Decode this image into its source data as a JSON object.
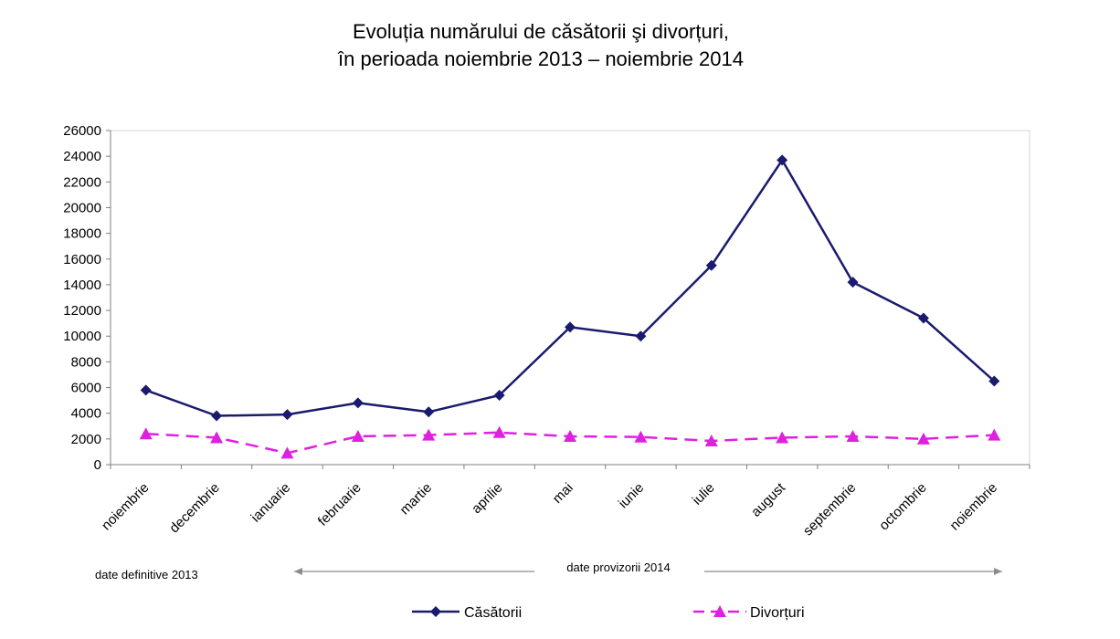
{
  "chart_data": {
    "type": "line",
    "title_lines": [
      "Evoluția numărului de căsătorii şi divorțuri,",
      "în perioada noiembrie 2013 – noiembrie 2014"
    ],
    "categories": [
      "noiembrie",
      "decembrie",
      "ianuarie",
      "februarie",
      "martie",
      "aprilie",
      "mai",
      "iunie",
      "iulie",
      "august",
      "septembrie",
      "octombrie",
      "noiembrie"
    ],
    "ylim": [
      0,
      26000
    ],
    "yticks": [
      0,
      2000,
      4000,
      6000,
      8000,
      10000,
      12000,
      14000,
      16000,
      18000,
      20000,
      22000,
      24000,
      26000
    ],
    "series": [
      {
        "name": "Căsătorii",
        "color": "#1a1a6e",
        "marker": "diamond",
        "dash": "solid",
        "values": [
          5800,
          3800,
          3900,
          4800,
          4100,
          5400,
          10700,
          10000,
          15500,
          23700,
          14200,
          11400,
          6500
        ]
      },
      {
        "name": "Divorțuri",
        "color": "#e020e0",
        "marker": "triangle",
        "dash": "dashed",
        "values": [
          2400,
          2100,
          900,
          2200,
          2300,
          2500,
          2200,
          2150,
          1850,
          2100,
          2200,
          2000,
          2300
        ]
      }
    ],
    "annotations": {
      "definitive": "date definitive 2013",
      "provisional": "date provizorii 2014"
    },
    "legend_position": "bottom"
  }
}
